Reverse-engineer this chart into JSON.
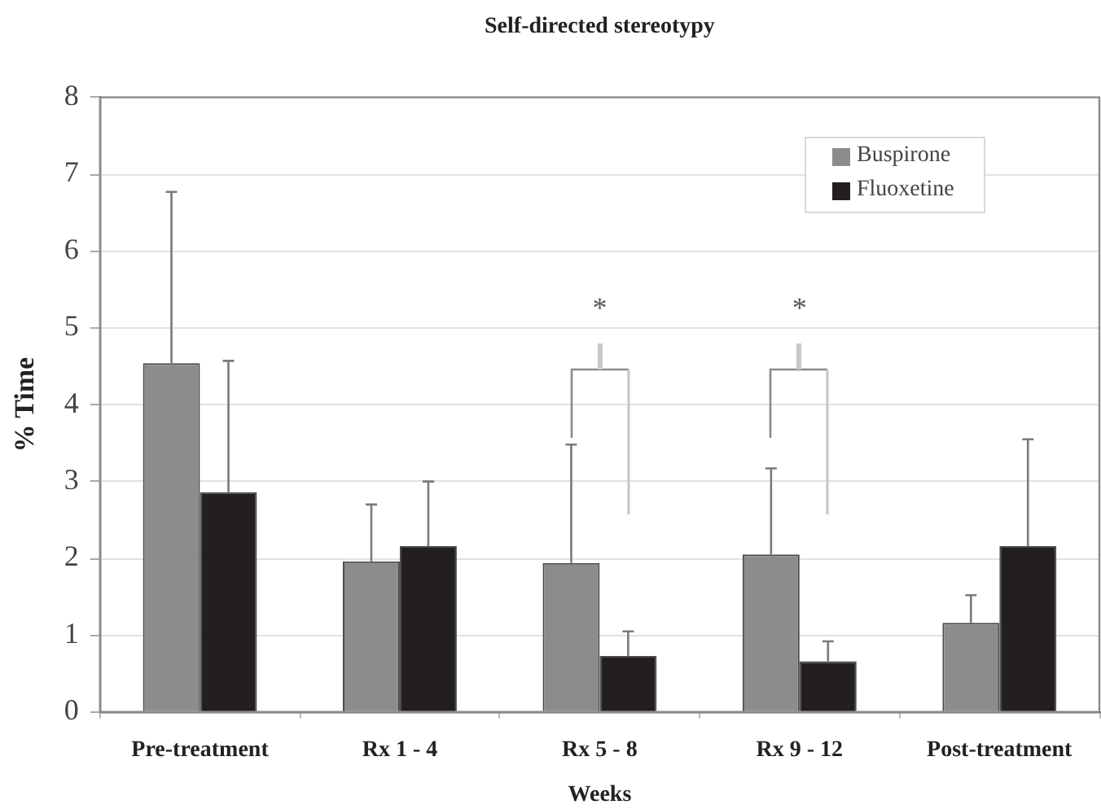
{
  "chart_data": {
    "type": "bar",
    "title": "Self-directed stereotypy",
    "xlabel": "Weeks",
    "ylabel": "% Time",
    "categories": [
      "Pre-treatment",
      "Rx 1 - 4",
      "Rx 5 - 8",
      "Rx 9 - 12",
      "Post-treatment"
    ],
    "series": [
      {
        "name": "Buspirone",
        "color": "#8c8c8c",
        "values": [
          4.54,
          1.96,
          1.94,
          2.05,
          1.16
        ],
        "errors": [
          [
            4.54,
            6.77
          ],
          [
            1.96,
            2.7
          ],
          [
            1.94,
            3.48
          ],
          [
            2.05,
            3.17
          ],
          [
            1.16,
            1.52
          ]
        ]
      },
      {
        "name": "Fluoxetine",
        "color": "#231f20",
        "values": [
          2.86,
          2.16,
          0.73,
          0.66,
          2.16
        ],
        "errors": [
          [
            2.86,
            4.57
          ],
          [
            2.16,
            3.0
          ],
          [
            0.73,
            1.05
          ],
          [
            0.66,
            0.92
          ],
          [
            2.16,
            3.55
          ]
        ]
      }
    ],
    "ylim": [
      0,
      8
    ],
    "yticks": [
      0,
      1,
      2,
      3,
      4,
      5,
      6,
      7,
      8
    ],
    "grid": "y",
    "legend": "top right",
    "annotations": [
      "*",
      "*"
    ]
  }
}
